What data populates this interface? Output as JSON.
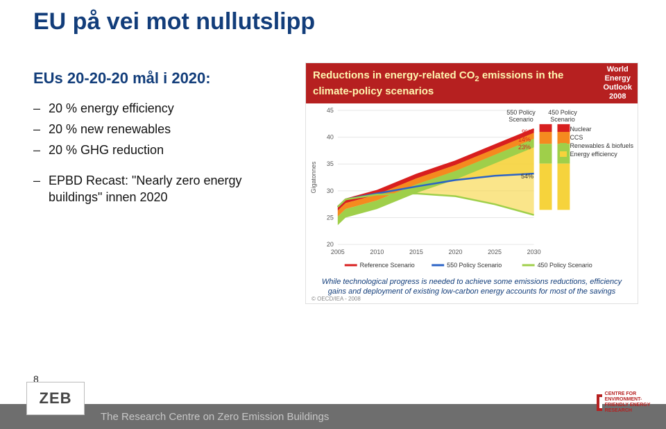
{
  "title": "EU på vei mot nullutslipp",
  "subtitle": "EUs 20-20-20 mål i 2020:",
  "bullets": [
    "20 % energy efficiency",
    "20 % new renewables",
    "20 % GHG reduction"
  ],
  "bullet2": "EPBD Recast: \"Nearly zero energy buildings\" innen 2020",
  "page_number": "8",
  "zeb": "ZEB",
  "footer_text": "The Research Centre on Zero Emission Buildings",
  "fme_label": "CENTRE FOR ENVIRONMENT-FRIENDLY ENERGY RESEARCH",
  "chart": {
    "type": "line-area",
    "header_title_html": "Reductions in energy-related CO<sub>2</sub> emissions in the climate-policy scenarios",
    "weo": "World Energy Outlook 2008",
    "caption": "While technological progress is needed to achieve some emissions reductions, efficiency gains and deployment of existing low-carbon energy accounts for most of the savings",
    "oecd": "© OECD/IEA - 2008",
    "y_label": "Gigatonnes",
    "x_ticks": [
      "2005",
      "2010",
      "2015",
      "2020",
      "2025",
      "2030"
    ],
    "y_ticks": [
      20,
      25,
      30,
      35,
      40,
      45
    ],
    "ylim": [
      20,
      45
    ],
    "xlim": [
      2005,
      2030
    ],
    "colors": {
      "bg": "#ffffff",
      "grid": "#e6e6e6",
      "axis_text": "#555555",
      "reference": "#d81f1f",
      "p550": "#2b63c6",
      "p450": "#9fcf4a",
      "nuclear": "#d81f1f",
      "ccs": "#f58a1f",
      "renew": "#9fcf4a",
      "eff": "#f6d33c"
    },
    "series": {
      "reference": {
        "2005": 27,
        "2006": 28.4,
        "2010": 30,
        "2015": 33,
        "2020": 35.5,
        "2025": 38.5,
        "2030": 41.5
      },
      "p550": {
        "2005": 27,
        "2006": 28.4,
        "2010": 29.5,
        "2015": 30.8,
        "2020": 32,
        "2025": 32.8,
        "2030": 33.2
      },
      "p450": {
        "2005": 27,
        "2006": 28.4,
        "2010": 29.3,
        "2015": 29.5,
        "2020": 29,
        "2025": 27.5,
        "2030": 25.5
      }
    },
    "wedge_labels_550": {
      "title": "550 Policy Scenario",
      "rows": [
        {
          "label": "Nuclear",
          "pct": "",
          "color": "#d81f1f"
        },
        {
          "label": "CCS",
          "pct": "",
          "color": "#f58a1f"
        },
        {
          "label": "Renewables & biofuels",
          "pct": "",
          "color": "#9fcf4a"
        },
        {
          "label": "Energy efficiency",
          "pct": "",
          "color": "#f6d33c"
        }
      ]
    },
    "wedge_pct_550": [
      "9%",
      "14%",
      "23%",
      "54%"
    ],
    "wedge_pct_450": [
      "9%",
      "14%",
      "23%",
      "54%"
    ],
    "stack_title_450": "450 Policy Scenario",
    "x_legend": [
      {
        "label": "Reference Scenario",
        "color": "#d81f1f"
      },
      {
        "label": "550 Policy Scenario",
        "color": "#2b63c6"
      },
      {
        "label": "450 Policy Scenario",
        "color": "#9fcf4a"
      }
    ],
    "font": {
      "axis": 9,
      "title": 15,
      "caption": 11
    }
  }
}
